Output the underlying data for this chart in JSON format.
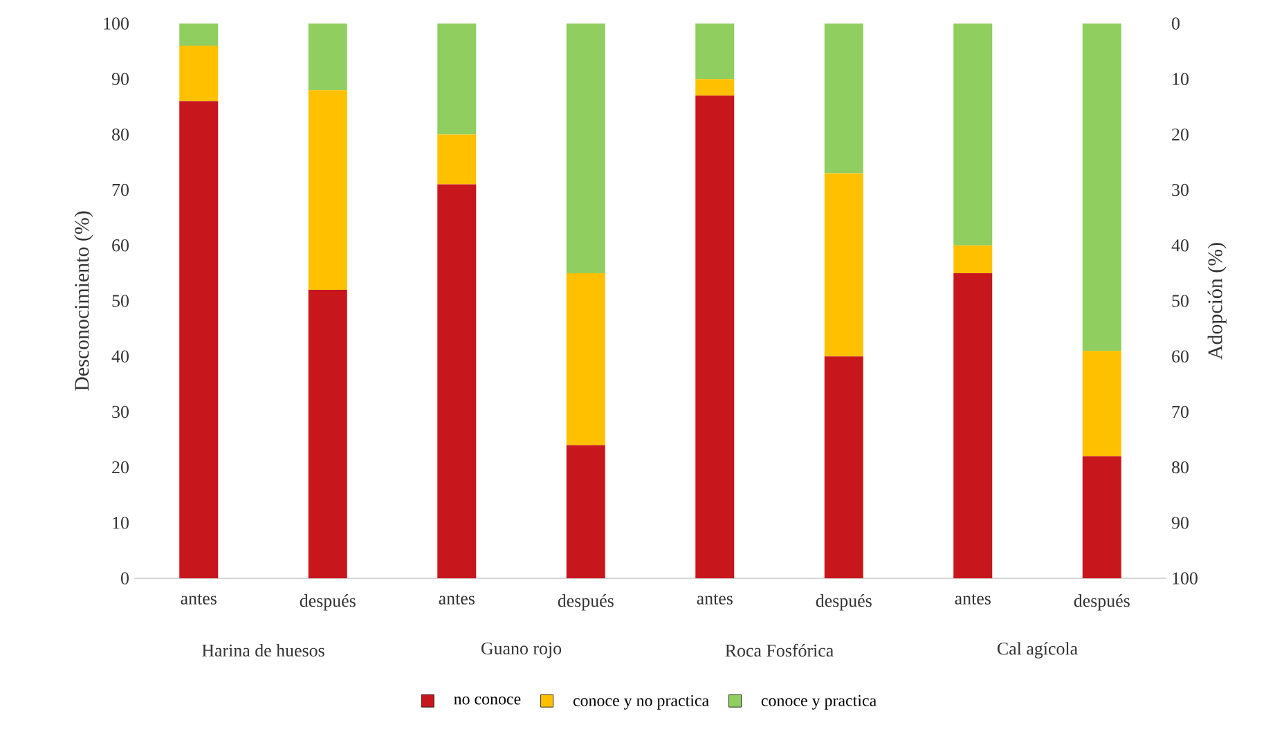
{
  "chart_data": {
    "type": "bar",
    "stacked": true,
    "categories": [
      "antes",
      "después",
      "antes",
      "después",
      "antes",
      "después",
      "antes",
      "después"
    ],
    "series": [
      {
        "name": "no conoce",
        "color": "#c8161d",
        "values": [
          86,
          52,
          71,
          24,
          87,
          40,
          55,
          22
        ]
      },
      {
        "name": "conoce y no practica",
        "color": "#ffc000",
        "values": [
          10,
          36,
          9,
          31,
          3,
          33,
          5,
          19
        ]
      },
      {
        "name": "conoce y practica",
        "color": "#8fce5f",
        "values": [
          4,
          12,
          20,
          45,
          10,
          27,
          40,
          59
        ]
      }
    ],
    "ylabel": "Desconocimiento  (%)",
    "y2label": "Adopción (%)",
    "ylim": [
      0,
      100
    ],
    "yticks": [
      0,
      10,
      20,
      30,
      40,
      50,
      60,
      70,
      80,
      90,
      100
    ],
    "y2lim": [
      100,
      0
    ],
    "y2ticks": [
      0,
      10,
      20,
      30,
      40,
      50,
      60,
      70,
      80,
      90,
      100
    ],
    "annotations": [
      "Harina de huesos",
      "Guano rojo",
      "Roca Fosfórica",
      "Cal agícola"
    ],
    "legend": "bottom",
    "grid": false
  }
}
